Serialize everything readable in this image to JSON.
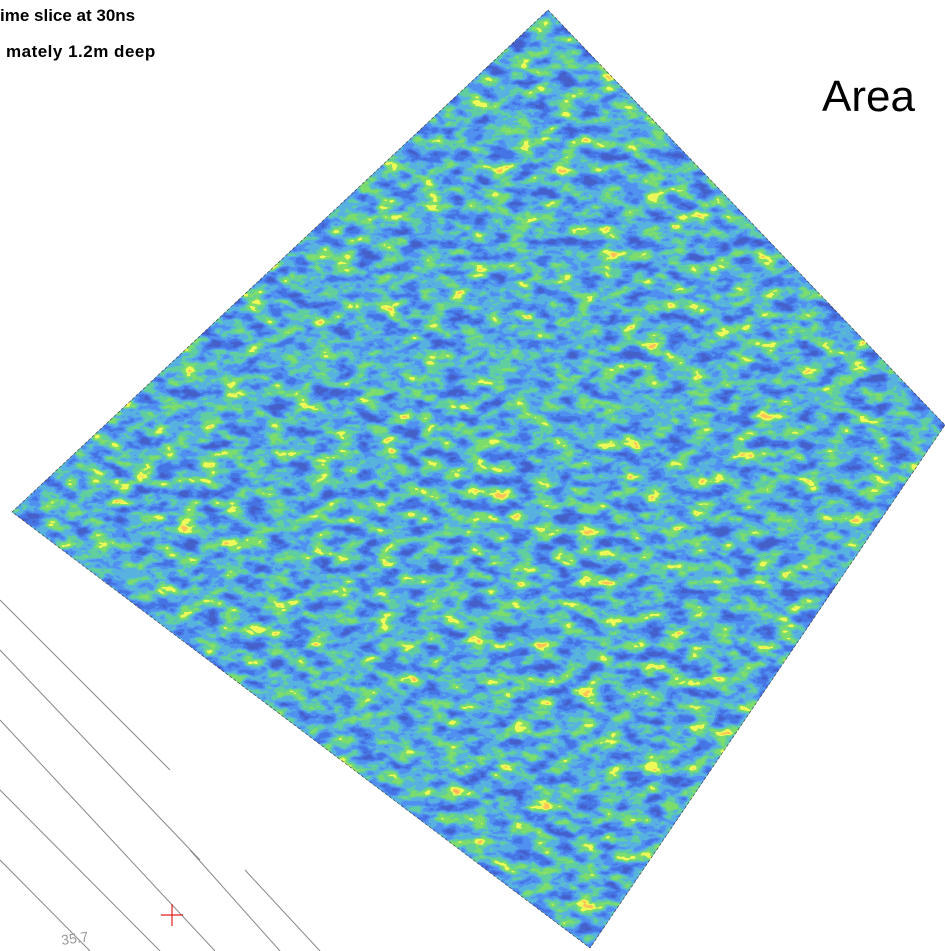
{
  "caption": {
    "line1": "ime slice at 30ns",
    "line2": "mately 1.2m deep"
  },
  "area_label": "Area",
  "contour_label": "35.7"
}
